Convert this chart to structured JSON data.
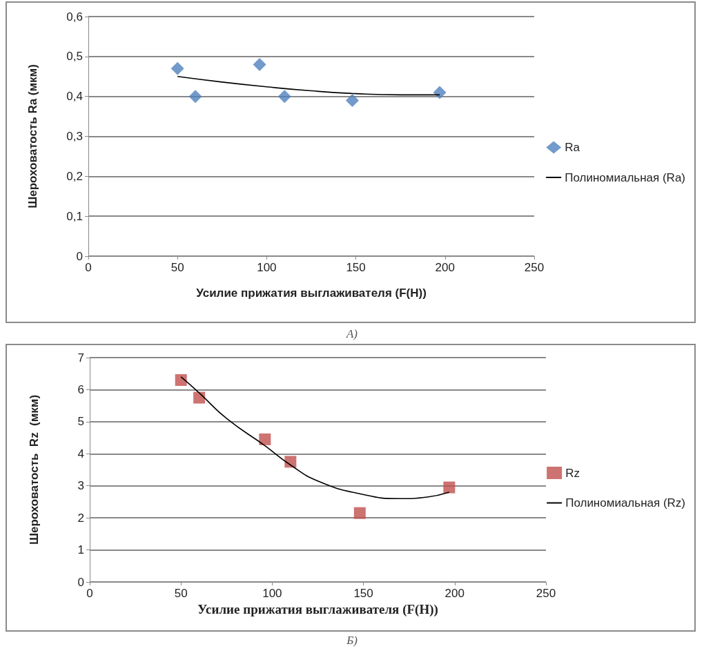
{
  "chart_data": [
    {
      "type": "scatter",
      "xlabel": "Усилие прижатия выглаживателя (F(H))",
      "ylabel": "Шероховатость Ra (мкм)",
      "annotations": [
        "А)"
      ],
      "xlim": [
        0,
        250
      ],
      "xticks": [
        0,
        50,
        100,
        150,
        200,
        250
      ],
      "ylim": [
        0,
        0.6
      ],
      "yticks": [
        {
          "value": 0,
          "label": "0"
        },
        {
          "value": 0.1,
          "label": "0,1"
        },
        {
          "value": 0.2,
          "label": "0,2"
        },
        {
          "value": 0.3,
          "label": "0,3"
        },
        {
          "value": 0.4,
          "label": "0,4"
        },
        {
          "value": 0.5,
          "label": "0,5"
        },
        {
          "value": 0.6,
          "label": "0,6"
        }
      ],
      "grid": "y",
      "legend": "right",
      "series": [
        {
          "name": "Ra",
          "marker": "diamond",
          "color": "#4f81bd",
          "x": [
            50,
            60,
            96,
            110,
            148,
            197
          ],
          "values": [
            0.47,
            0.4,
            0.48,
            0.4,
            0.39,
            0.41
          ]
        },
        {
          "name": "Полиномиальная (Ra)",
          "type": "line",
          "marker": "none",
          "color": "#000000",
          "x": [
            50,
            75,
            100,
            125,
            150,
            175,
            197
          ],
          "values": [
            0.45,
            0.436,
            0.424,
            0.414,
            0.407,
            0.404,
            0.404
          ]
        }
      ]
    },
    {
      "type": "scatter",
      "xlabel": "Усилие прижатия выглаживателя (F(H))",
      "ylabel": "Шероховатость  Rz  (мкм)",
      "annotations": [
        "Б)"
      ],
      "xlim": [
        0,
        250
      ],
      "xticks": [
        0,
        50,
        100,
        150,
        200,
        250
      ],
      "ylim": [
        0,
        7
      ],
      "yticks": [
        0,
        1,
        2,
        3,
        4,
        5,
        6,
        7
      ],
      "grid": "y",
      "legend": "right",
      "series": [
        {
          "name": "Rz",
          "marker": "square",
          "color": "#c0504d",
          "x": [
            50,
            60,
            96,
            110,
            148,
            197
          ],
          "values": [
            6.3,
            5.75,
            4.45,
            3.75,
            2.15,
            2.95
          ]
        },
        {
          "name": "Полиномиальная (Rz)",
          "type": "line",
          "marker": "none",
          "color": "#000000",
          "x": [
            50,
            60,
            75,
            96,
            110,
            125,
            148,
            170,
            185,
            197
          ],
          "values": [
            6.4,
            5.9,
            5.1,
            4.25,
            3.65,
            3.15,
            2.75,
            2.6,
            2.65,
            2.8
          ]
        }
      ]
    }
  ]
}
